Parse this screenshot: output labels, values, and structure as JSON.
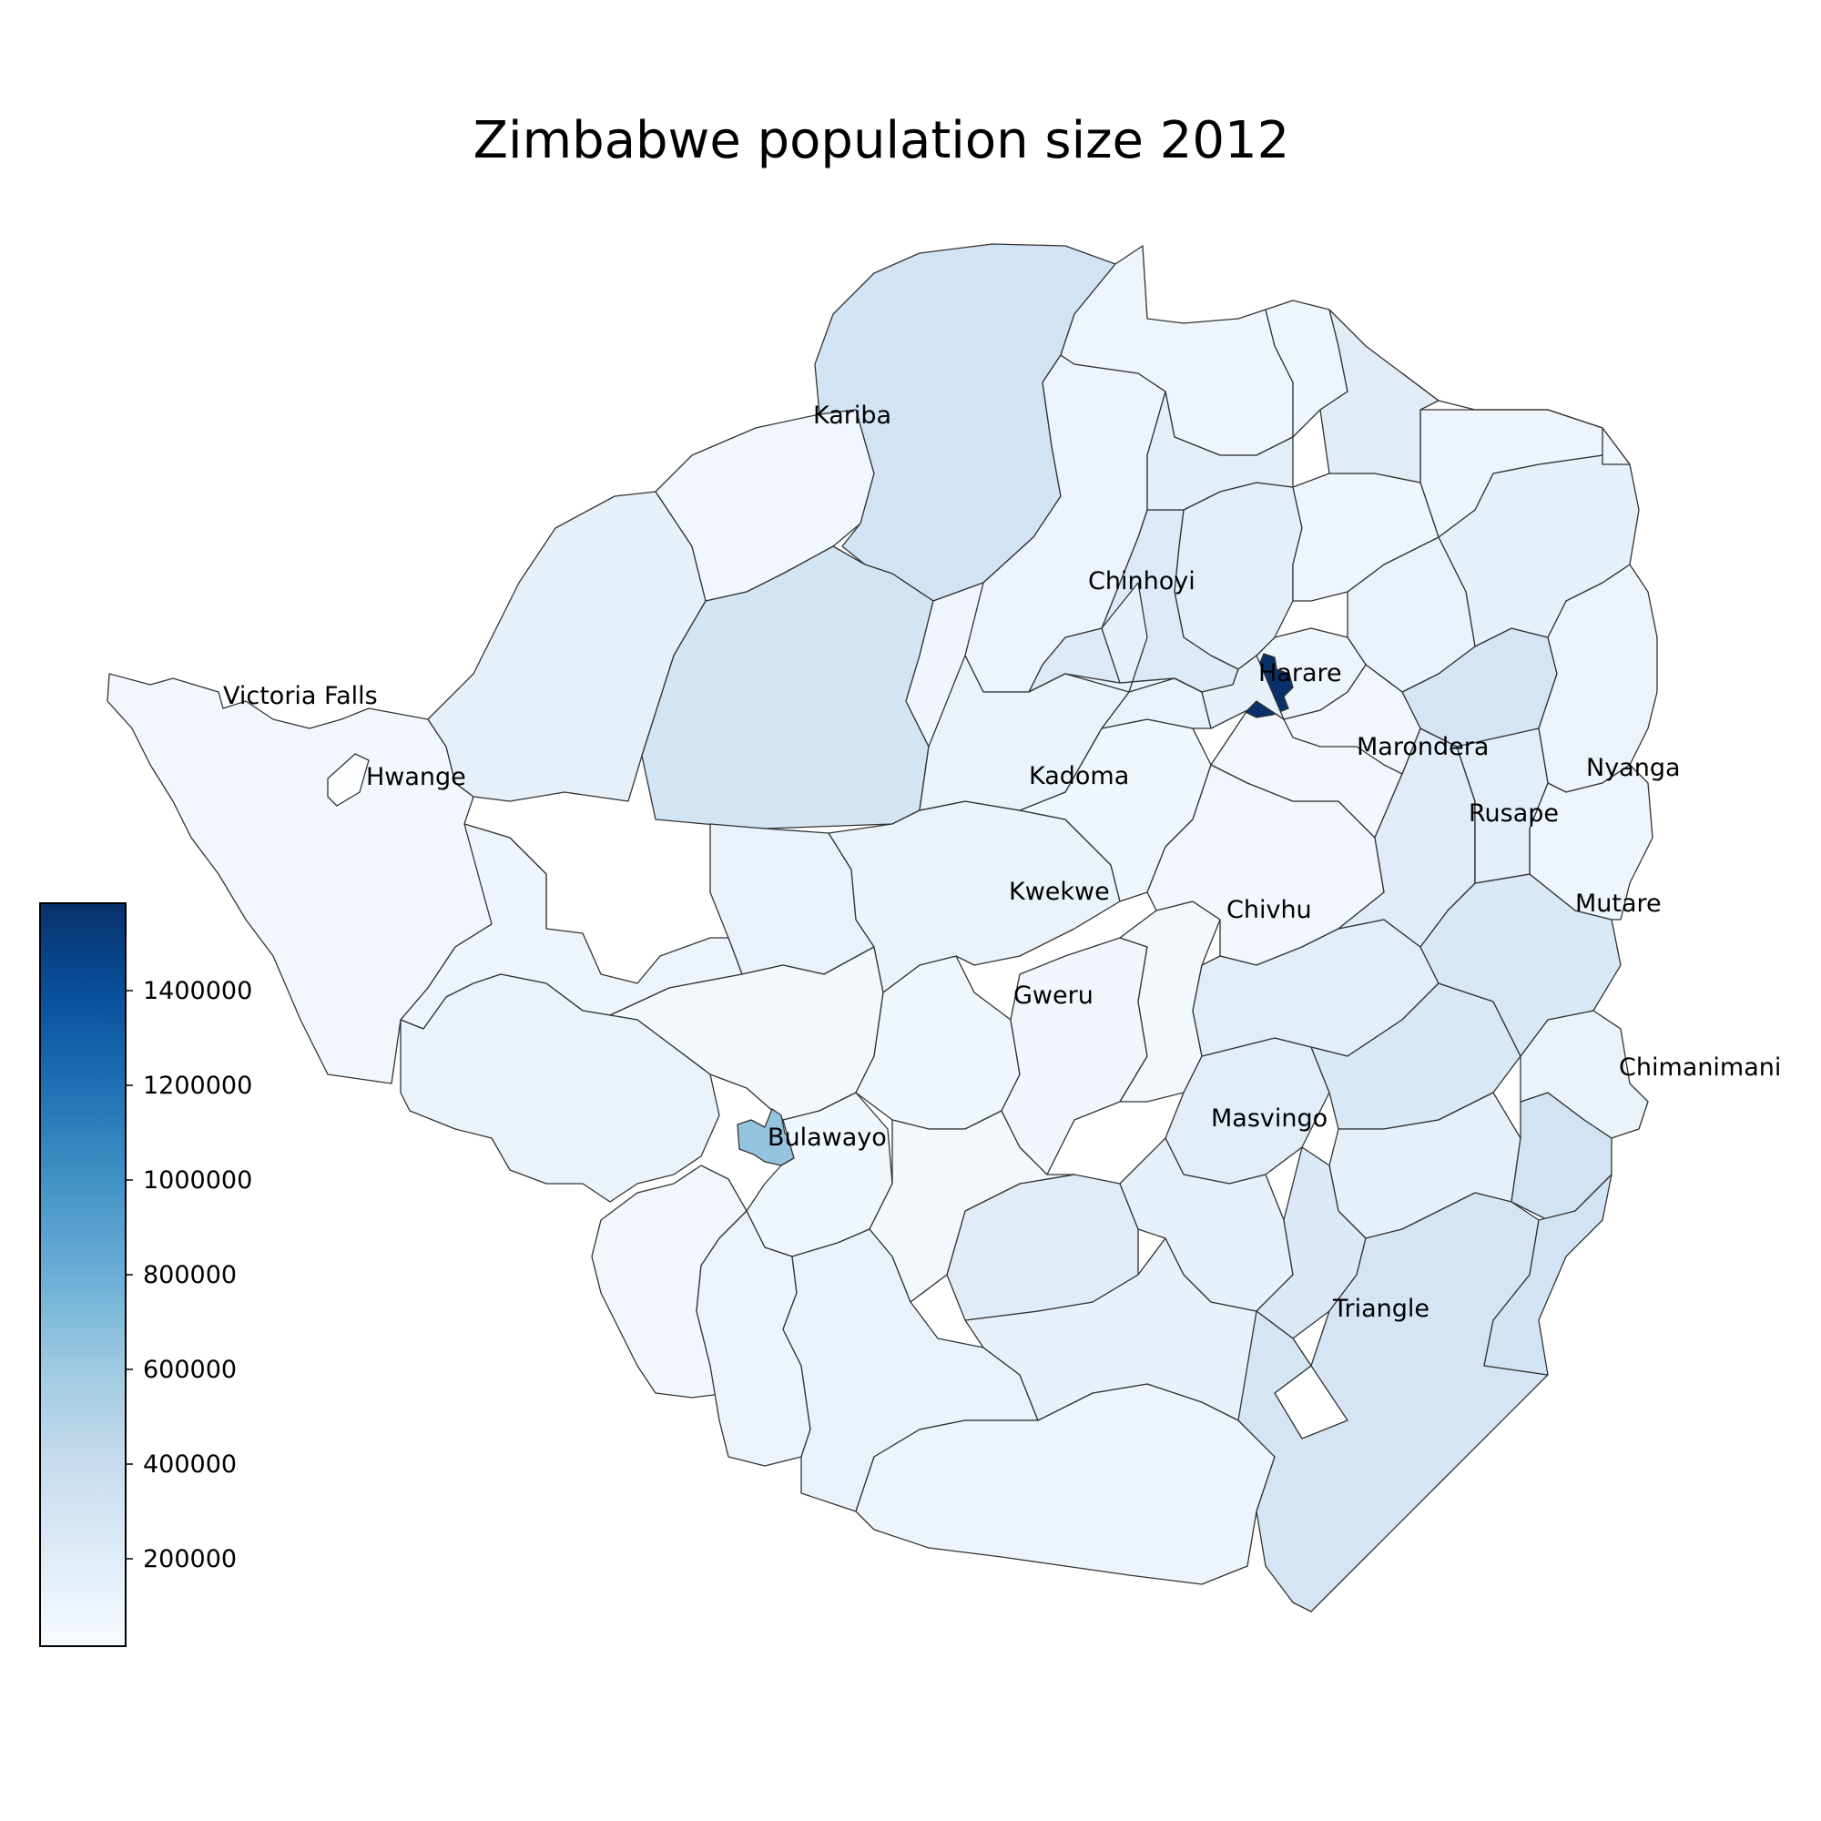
{
  "map": {
    "title": "Zimbabwe population size 2012",
    "colormap": "Blues",
    "color_light": "#f7fbff",
    "color_dark": "#08306b",
    "border_color": "#333333",
    "value_range": [
      12000,
      1590000
    ],
    "colorbar": {
      "ticks": [
        "200000",
        "400000",
        "600000",
        "800000",
        "1000000",
        "1200000",
        "1400000"
      ]
    },
    "cities": [
      "Kariba",
      "Victoria Falls",
      "Hwange",
      "Chinhoyi",
      "Harare",
      "Marondera",
      "Nyanga",
      "Kadoma",
      "Rusape",
      "Kwekwe",
      "Chivhu",
      "Mutare",
      "Gweru",
      "Chimanimani",
      "Bulawayo",
      "Masvingo",
      "Triangle"
    ]
  }
}
